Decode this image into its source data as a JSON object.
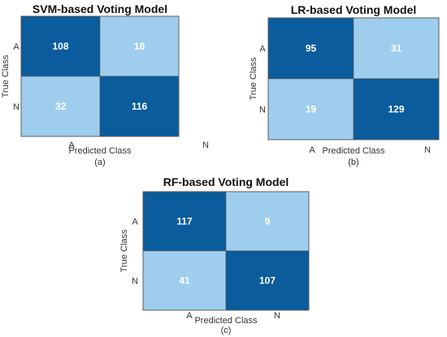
{
  "colors": {
    "dark": "#0a5c9c",
    "light": "#9fcdee",
    "border": "#555555"
  },
  "chart_data": [
    {
      "type": "heatmap",
      "title": "SVM-based Voting Model",
      "xlabel": "Predicted Class",
      "ylabel": "True Class",
      "x_categories": [
        "A",
        "N"
      ],
      "y_categories": [
        "A",
        "N"
      ],
      "values": [
        [
          108,
          18
        ],
        [
          32,
          116
        ]
      ],
      "caption": "(a)"
    },
    {
      "type": "heatmap",
      "title": "LR-based Voting Model",
      "xlabel": "Predicted Class",
      "ylabel": "True Class",
      "x_categories": [
        "A",
        "N"
      ],
      "y_categories": [
        "A",
        "N"
      ],
      "values": [
        [
          95,
          31
        ],
        [
          19,
          129
        ]
      ],
      "caption": "(b)"
    },
    {
      "type": "heatmap",
      "title": "RF-based Voting Model",
      "xlabel": "Predicted Class",
      "ylabel": "True Class",
      "x_categories": [
        "A",
        "N"
      ],
      "y_categories": [
        "A",
        "N"
      ],
      "values": [
        [
          117,
          9
        ],
        [
          41,
          107
        ]
      ],
      "caption": "(c)"
    }
  ]
}
